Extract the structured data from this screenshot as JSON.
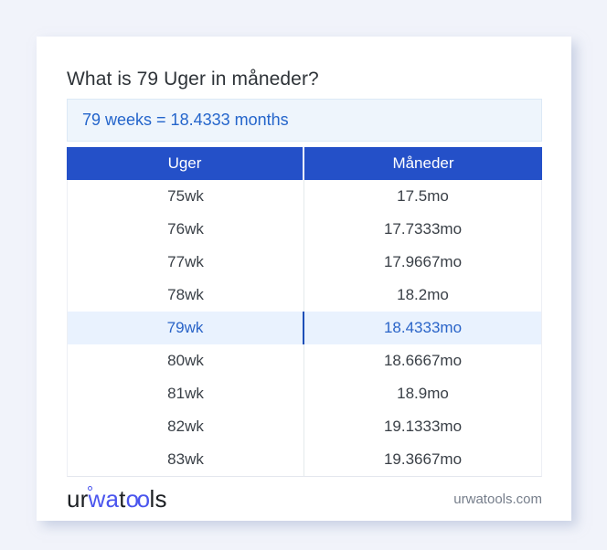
{
  "page": {
    "title": "What is 79 Uger in måneder?",
    "answer_text": "79 weeks = 18.4333 months"
  },
  "table": {
    "headers": [
      "Uger",
      "Måneder"
    ],
    "rows": [
      {
        "weeks": "75wk",
        "months": "17.5mo",
        "highlight": false
      },
      {
        "weeks": "76wk",
        "months": "17.7333mo",
        "highlight": false
      },
      {
        "weeks": "77wk",
        "months": "17.9667mo",
        "highlight": false
      },
      {
        "weeks": "78wk",
        "months": "18.2mo",
        "highlight": false
      },
      {
        "weeks": "79wk",
        "months": "18.4333mo",
        "highlight": true
      },
      {
        "weeks": "80wk",
        "months": "18.6667mo",
        "highlight": false
      },
      {
        "weeks": "81wk",
        "months": "18.9mo",
        "highlight": false
      },
      {
        "weeks": "82wk",
        "months": "19.1333mo",
        "highlight": false
      },
      {
        "weeks": "83wk",
        "months": "19.3667mo",
        "highlight": false
      }
    ]
  },
  "footer": {
    "logo": {
      "seg1": "ur",
      "seg2": "wa",
      "seg3": "t",
      "seg4": "oo",
      "seg5": "ls",
      "ring_icon": "small-circle"
    },
    "domain": "urwatools.com"
  },
  "colors": {
    "page_background": "#f1f3fa",
    "header_blue": "#2450c8",
    "answer_background": "#eef5fc",
    "answer_text_blue": "#2465cb",
    "highlight_row_background": "#e9f2fe",
    "highlight_text_blue": "#2a64c8",
    "highlight_divider_blue": "#1d4fb8",
    "logo_blue": "#4a55ee"
  }
}
